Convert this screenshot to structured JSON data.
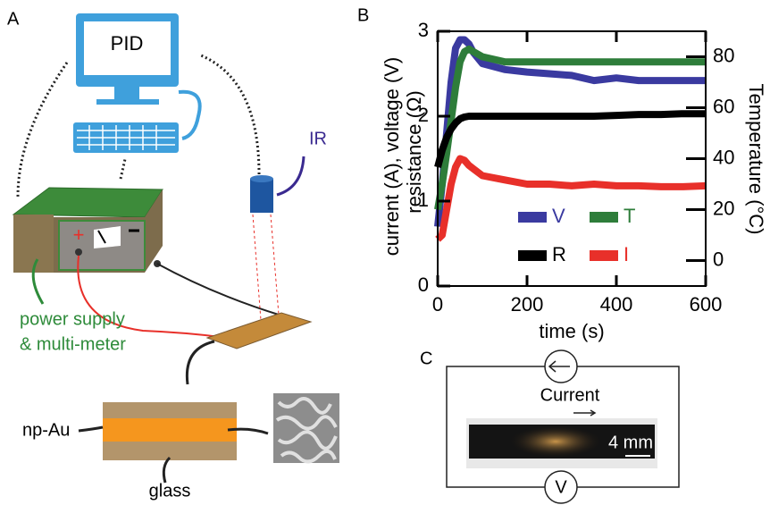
{
  "panels": {
    "a": {
      "letter": "A",
      "computer": "PID",
      "sensor": "IR",
      "plus": "+",
      "supply_line1": "power supply",
      "supply_line2": "& multi-meter",
      "film": "np-Au",
      "substrate": "glass"
    },
    "c": {
      "letter": "C",
      "current": "Current",
      "scale": "4 mm",
      "meter": "V"
    }
  },
  "chart_data": {
    "type": "line",
    "panel": "B",
    "x_label": "time (s)",
    "y_label": [
      "current (A), voltage (V)",
      "resistance (Ω)"
    ],
    "y2_label": "Temperature (°C)",
    "x": [
      0,
      10,
      20,
      30,
      40,
      50,
      60,
      70,
      80,
      100,
      150,
      200,
      250,
      300,
      350,
      400,
      450,
      500,
      550,
      600
    ],
    "xlim": [
      0,
      600
    ],
    "xticks": [
      0,
      200,
      400,
      600
    ],
    "ylim": [
      0,
      3
    ],
    "yticks": [
      0,
      1,
      2,
      3
    ],
    "y2lim": [
      -10,
      90
    ],
    "y2ticks": [
      0,
      20,
      40,
      60,
      80
    ],
    "grid": false,
    "series": [
      {
        "name": "V",
        "color": "#3a3aa0",
        "values": [
          0.7,
          1.2,
          1.8,
          2.4,
          2.8,
          2.9,
          2.9,
          2.85,
          2.75,
          2.62,
          2.55,
          2.52,
          2.5,
          2.48,
          2.42,
          2.45,
          2.42,
          2.42,
          2.42,
          2.42
        ]
      },
      {
        "name": "T",
        "color": "#2e7d3a",
        "axis": "y2",
        "values": [
          20,
          30,
          42,
          55,
          68,
          78,
          82,
          83,
          82,
          80,
          78,
          78,
          78,
          78,
          78,
          78,
          78,
          78,
          78,
          78
        ]
      },
      {
        "name": "R",
        "color": "#000000",
        "values": [
          1.4,
          1.6,
          1.75,
          1.85,
          1.92,
          1.97,
          1.99,
          2.0,
          2.0,
          2.0,
          2.0,
          2.0,
          2.0,
          2.0,
          2.0,
          2.01,
          2.02,
          2.02,
          2.03,
          2.03
        ]
      },
      {
        "name": "I",
        "color": "#e8302a",
        "values": [
          0.55,
          0.6,
          0.9,
          1.2,
          1.4,
          1.5,
          1.48,
          1.42,
          1.38,
          1.3,
          1.25,
          1.2,
          1.2,
          1.18,
          1.2,
          1.18,
          1.18,
          1.17,
          1.17,
          1.18
        ]
      }
    ]
  }
}
